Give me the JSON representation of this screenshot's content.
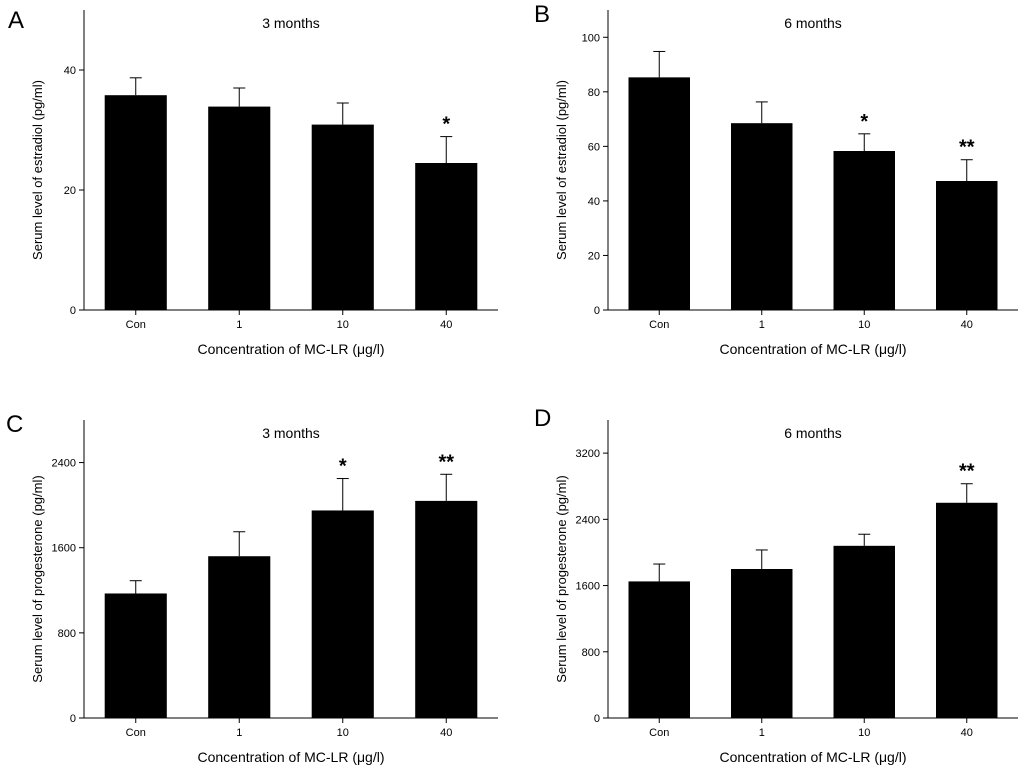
{
  "chart_data": [
    {
      "type": "bar",
      "panel": "A",
      "title": "3 months",
      "xlabel": "Concentration of MC-LR (μg/l)",
      "ylabel": "Serum level of estradiol (pg/ml)",
      "categories": [
        "Con",
        "1",
        "10",
        "40"
      ],
      "values": [
        35.8,
        33.9,
        30.9,
        24.5
      ],
      "errors": [
        2.9,
        3.1,
        3.6,
        4.4
      ],
      "significance": [
        "",
        "",
        "",
        "*"
      ],
      "ylim": [
        0,
        50
      ],
      "yticks": [
        0,
        20,
        40
      ]
    },
    {
      "type": "bar",
      "panel": "B",
      "title": "6 months",
      "xlabel": "Concentration of MC-LR (μg/l)",
      "ylabel": "Serum level of estradiol (pg/ml)",
      "categories": [
        "Con",
        "1",
        "10",
        "40"
      ],
      "values": [
        85.3,
        68.5,
        58.3,
        47.3
      ],
      "errors": [
        9.5,
        7.8,
        6.3,
        7.8
      ],
      "significance": [
        "",
        "",
        "*",
        "**"
      ],
      "ylim": [
        0,
        110
      ],
      "yticks": [
        0,
        20,
        40,
        60,
        80,
        100
      ]
    },
    {
      "type": "bar",
      "panel": "C",
      "title": "3 months",
      "xlabel": "Concentration of MC-LR (μg/l)",
      "ylabel": "Serum level of progesterone (pg/ml)",
      "categories": [
        "Con",
        "1",
        "10",
        "40"
      ],
      "values": [
        1170,
        1520,
        1950,
        2040
      ],
      "errors": [
        120,
        230,
        300,
        250
      ],
      "significance": [
        "",
        "",
        "*",
        "**"
      ],
      "ylim": [
        0,
        2800
      ],
      "yticks": [
        0,
        800,
        1600,
        2400
      ]
    },
    {
      "type": "bar",
      "panel": "D",
      "title": "6 months",
      "xlabel": "Concentration of MC-LR (μg/l)",
      "ylabel": "Serum level of progesterone (pg/ml)",
      "categories": [
        "Con",
        "1",
        "10",
        "40"
      ],
      "values": [
        1650,
        1800,
        2080,
        2600
      ],
      "errors": [
        210,
        230,
        140,
        230
      ],
      "significance": [
        "",
        "",
        "",
        "**"
      ],
      "ylim": [
        0,
        3600
      ],
      "yticks": [
        0,
        800,
        1600,
        2400,
        3200
      ]
    }
  ]
}
